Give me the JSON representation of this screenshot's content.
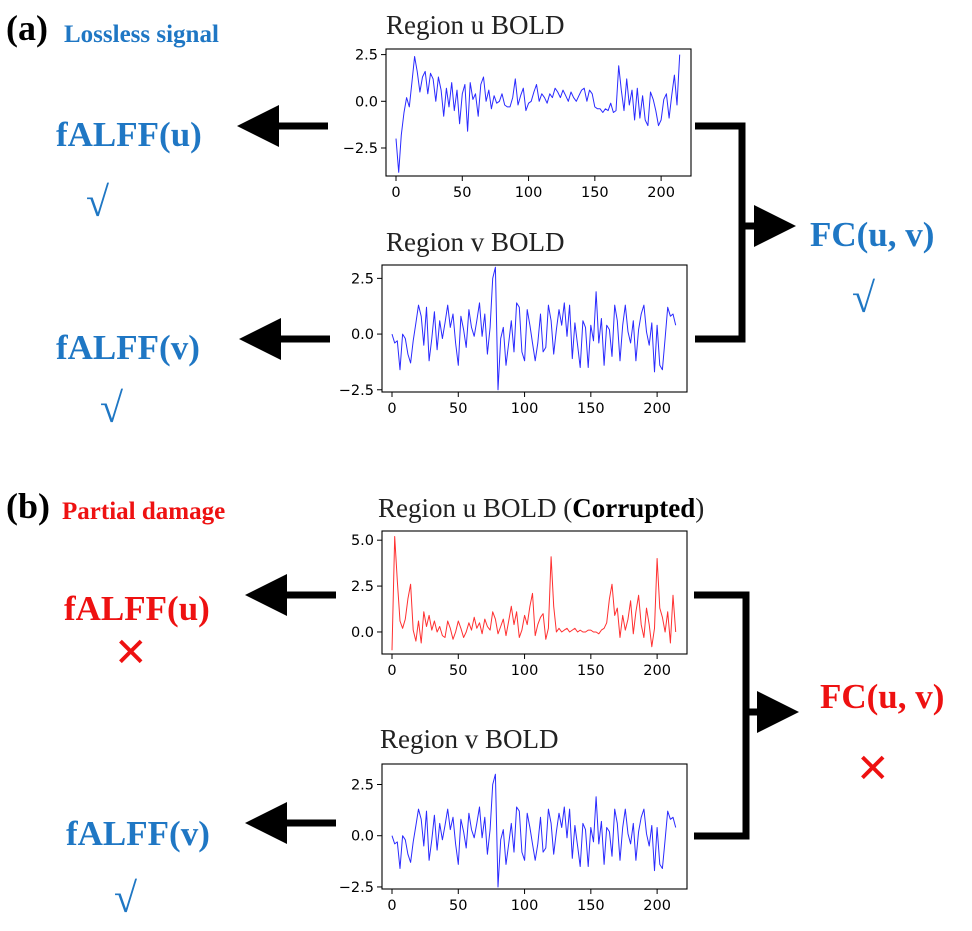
{
  "colors": {
    "good": "#1f77c4",
    "bad": "#ee1111",
    "signal_clean": "#2a2aff",
    "signal_corrupted": "#ff3030"
  },
  "panel_a": {
    "letter": "(a)",
    "subtitle": "Lossless signal",
    "plot_u_title": "Region u BOLD",
    "plot_v_title": "Region v BOLD",
    "falff_u": "fALFF(u)",
    "falff_v": "fALFF(v)",
    "fc": "FC(u, v)",
    "mark_u": "√",
    "mark_v": "√",
    "mark_fc": "√"
  },
  "panel_b": {
    "letter": "(b)",
    "subtitle": "Partial damage",
    "plot_u_title_prefix": "Region u BOLD (",
    "plot_u_title_bold": "Corrupted",
    "plot_u_title_suffix": ")",
    "plot_v_title": "Region v BOLD",
    "falff_u": "fALFF(u)",
    "falff_v": "fALFF(v)",
    "fc": "FC(u, v)",
    "mark_u": "✕",
    "mark_v": "√",
    "mark_fc": "✕"
  },
  "chart_data": [
    {
      "type": "line",
      "name": "a-u",
      "title": "Region u BOLD",
      "xlim": [
        0,
        215
      ],
      "ylim": [
        -4.0,
        2.8
      ],
      "xticks": [
        0,
        50,
        100,
        150,
        200
      ],
      "yticks": [
        2.5,
        0.0,
        -2.5
      ],
      "ytick_labels": [
        "2.5",
        "0.0",
        "−2.5"
      ],
      "color": "#2a2aff",
      "x": [
        0,
        2,
        4,
        6,
        8,
        10,
        12,
        14,
        16,
        18,
        20,
        22,
        24,
        26,
        28,
        30,
        32,
        34,
        36,
        38,
        40,
        42,
        44,
        46,
        48,
        50,
        52,
        54,
        56,
        58,
        60,
        62,
        64,
        66,
        68,
        70,
        72,
        74,
        76,
        78,
        80,
        82,
        84,
        86,
        88,
        90,
        92,
        94,
        96,
        98,
        100,
        102,
        104,
        106,
        108,
        110,
        112,
        114,
        116,
        118,
        120,
        122,
        124,
        126,
        128,
        130,
        132,
        134,
        136,
        138,
        140,
        142,
        144,
        146,
        148,
        150,
        152,
        154,
        156,
        158,
        160,
        162,
        164,
        166,
        168,
        170,
        172,
        174,
        176,
        178,
        180,
        182,
        184,
        186,
        188,
        190,
        192,
        194,
        196,
        198,
        200,
        202,
        204,
        206,
        208,
        210,
        212,
        214
      ],
      "y": [
        -2.0,
        -3.8,
        -1.8,
        -0.6,
        0.2,
        -0.3,
        1.0,
        2.4,
        1.6,
        0.5,
        1.3,
        1.6,
        0.4,
        1.5,
        1.2,
        0.0,
        1.3,
        0.6,
        -0.8,
        0.7,
        -0.3,
        1.0,
        -0.5,
        0.6,
        -1.2,
        0.4,
        0.9,
        -1.6,
        1.0,
        0.1,
        0.4,
        -0.8,
        0.9,
        1.3,
        0.0,
        0.6,
        -0.4,
        0.3,
        -0.1,
        0.0,
        0.4,
        -0.2,
        -0.3,
        -0.3,
        0.2,
        1.2,
        -0.2,
        0.3,
        0.7,
        -0.5,
        -0.1,
        0.0,
        0.5,
        0.9,
        0.0,
        0.4,
        0.2,
        -0.1,
        0.4,
        0.2,
        0.7,
        0.5,
        0.2,
        0.6,
        0.3,
        0.0,
        0.5,
        0.2,
        0.0,
        0.3,
        0.6,
        0.7,
        0.0,
        0.6,
        0.4,
        -0.3,
        -0.4,
        -0.4,
        -0.6,
        -0.4,
        -0.5,
        -0.1,
        -0.6,
        -0.5,
        1.9,
        0.6,
        -0.5,
        1.2,
        -0.2,
        0.6,
        -1.0,
        0.7,
        -0.9,
        0.3,
        -1.0,
        -1.3,
        0.5,
        0.1,
        -0.5,
        -1.3,
        -1.0,
        0.1,
        0.4,
        -0.9,
        0.3,
        1.4,
        -0.2,
        2.5
      ]
    },
    {
      "type": "line",
      "name": "a-v",
      "title": "Region v BOLD",
      "xlim": [
        0,
        215
      ],
      "ylim": [
        -2.6,
        3.1
      ],
      "xticks": [
        0,
        50,
        100,
        150,
        200
      ],
      "yticks": [
        2.5,
        0.0,
        -2.5
      ],
      "ytick_labels": [
        "2.5",
        "0.0",
        "−2.5"
      ],
      "color": "#2a2aff",
      "x": [
        0,
        2,
        4,
        6,
        8,
        10,
        12,
        14,
        16,
        18,
        20,
        22,
        24,
        26,
        28,
        30,
        32,
        34,
        36,
        38,
        40,
        42,
        44,
        46,
        48,
        50,
        52,
        54,
        56,
        58,
        60,
        62,
        64,
        66,
        68,
        70,
        72,
        74,
        76,
        78,
        80,
        82,
        84,
        86,
        88,
        90,
        92,
        94,
        96,
        98,
        100,
        102,
        104,
        106,
        108,
        110,
        112,
        114,
        116,
        118,
        120,
        122,
        124,
        126,
        128,
        130,
        132,
        134,
        136,
        138,
        140,
        142,
        144,
        146,
        148,
        150,
        152,
        154,
        156,
        158,
        160,
        162,
        164,
        166,
        168,
        170,
        172,
        174,
        176,
        178,
        180,
        182,
        184,
        186,
        188,
        190,
        192,
        194,
        196,
        198,
        200,
        202,
        204,
        206,
        208,
        210,
        212,
        214
      ],
      "y": [
        0.0,
        -0.4,
        -0.3,
        -1.6,
        0.0,
        -0.2,
        -0.9,
        -1.3,
        -0.3,
        0.5,
        1.3,
        0.8,
        -0.5,
        1.2,
        -1.2,
        -0.2,
        1.0,
        -0.7,
        0.6,
        -0.2,
        0.5,
        1.3,
        0.3,
        0.9,
        -0.4,
        -1.4,
        0.8,
        0.2,
        -0.6,
        1.1,
        0.3,
        -0.1,
        0.6,
        1.4,
        -0.1,
        0.9,
        -0.9,
        0.3,
        2.5,
        3.0,
        -2.5,
        -0.2,
        0.3,
        -1.4,
        -0.4,
        0.6,
        -0.8,
        1.4,
        1.2,
        -0.8,
        -1.2,
        1.1,
        0.4,
        -0.4,
        -1.2,
        -0.4,
        0.9,
        -0.8,
        -0.6,
        1.3,
        0.6,
        -0.9,
        0.2,
        1.1,
        0.4,
        1.4,
        -0.1,
        1.3,
        -1.1,
        0.5,
        -0.5,
        -1.5,
        0.6,
        0.3,
        -1.5,
        0.4,
        -0.3,
        1.9,
        -0.4,
        0.7,
        -1.4,
        0.4,
        0.2,
        -1.0,
        1.3,
        0.6,
        -1.2,
        0.4,
        1.3,
        0.1,
        -0.4,
        0.6,
        -1.2,
        0.2,
        0.9,
        1.3,
        0.1,
        -0.5,
        0.5,
        -1.7,
        0.4,
        -1.4,
        -1.6,
        -0.2,
        1.2,
        0.8,
        0.9,
        0.4
      ]
    },
    {
      "type": "line",
      "name": "b-u",
      "title": "Region u BOLD (Corrupted)",
      "xlim": [
        0,
        215
      ],
      "ylim": [
        -1.2,
        5.5
      ],
      "xticks": [
        0,
        50,
        100,
        150,
        200
      ],
      "yticks": [
        5.0,
        2.5,
        0.0
      ],
      "ytick_labels": [
        "5.0",
        "2.5",
        "0.0"
      ],
      "color": "#ff3030",
      "x": [
        0,
        2,
        4,
        6,
        8,
        10,
        12,
        14,
        16,
        18,
        20,
        22,
        24,
        26,
        28,
        30,
        32,
        34,
        36,
        38,
        40,
        42,
        44,
        46,
        48,
        50,
        52,
        54,
        56,
        58,
        60,
        62,
        64,
        66,
        68,
        70,
        72,
        74,
        76,
        78,
        80,
        82,
        84,
        86,
        88,
        90,
        92,
        94,
        96,
        98,
        100,
        102,
        104,
        106,
        108,
        110,
        112,
        114,
        116,
        118,
        120,
        122,
        124,
        126,
        128,
        130,
        132,
        134,
        136,
        138,
        140,
        142,
        144,
        146,
        148,
        150,
        152,
        154,
        156,
        158,
        160,
        162,
        164,
        166,
        168,
        170,
        172,
        174,
        176,
        178,
        180,
        182,
        184,
        186,
        188,
        190,
        192,
        194,
        196,
        198,
        200,
        202,
        204,
        206,
        208,
        210,
        212,
        214
      ],
      "y": [
        -1.0,
        5.2,
        2.8,
        0.6,
        0.2,
        0.7,
        1.8,
        2.6,
        0.1,
        -0.5,
        0.6,
        -0.6,
        1.1,
        0.3,
        0.9,
        0.1,
        0.6,
        0.0,
        0.3,
        -0.2,
        -0.3,
        0.6,
        0.2,
        -0.4,
        0.0,
        0.6,
        0.2,
        -0.3,
        0.0,
        0.5,
        0.1,
        0.8,
        0.2,
        0.5,
        -0.1,
        0.7,
        0.3,
        0.1,
        1.1,
        0.7,
        -0.1,
        0.3,
        0.7,
        -0.2,
        0.6,
        1.4,
        0.4,
        1.1,
        -0.3,
        0.1,
        0.9,
        0.4,
        1.4,
        2.1,
        -0.2,
        0.4,
        0.8,
        1.0,
        -0.4,
        0.2,
        4.1,
        1.4,
        0.0,
        0.2,
        0.0,
        0.1,
        0.2,
        0.0,
        0.1,
        0.2,
        0.0,
        0.1,
        0.0,
        0.0,
        0.1,
        0.1,
        0.0,
        0.0,
        -0.1,
        0.1,
        0.2,
        0.5,
        1.8,
        2.6,
        0.9,
        1.3,
        -0.3,
        0.9,
        0.1,
        0.7,
        1.7,
        -0.1,
        1.1,
        2.0,
        0.4,
        -0.3,
        1.3,
        0.4,
        -0.8,
        0.2,
        4.0,
        1.3,
        0.8,
        0.0,
        1.1,
        -0.6,
        2.0,
        0.0
      ]
    },
    {
      "type": "line",
      "name": "b-v",
      "title": "Region v BOLD",
      "xlim": [
        0,
        215
      ],
      "ylim": [
        -2.6,
        3.5
      ],
      "xticks": [
        0,
        50,
        100,
        150,
        200
      ],
      "yticks": [
        2.5,
        0.0,
        -2.5
      ],
      "ytick_labels": [
        "2.5",
        "0.0",
        "−2.5"
      ],
      "color": "#2a2aff",
      "x": [
        0,
        2,
        4,
        6,
        8,
        10,
        12,
        14,
        16,
        18,
        20,
        22,
        24,
        26,
        28,
        30,
        32,
        34,
        36,
        38,
        40,
        42,
        44,
        46,
        48,
        50,
        52,
        54,
        56,
        58,
        60,
        62,
        64,
        66,
        68,
        70,
        72,
        74,
        76,
        78,
        80,
        82,
        84,
        86,
        88,
        90,
        92,
        94,
        96,
        98,
        100,
        102,
        104,
        106,
        108,
        110,
        112,
        114,
        116,
        118,
        120,
        122,
        124,
        126,
        128,
        130,
        132,
        134,
        136,
        138,
        140,
        142,
        144,
        146,
        148,
        150,
        152,
        154,
        156,
        158,
        160,
        162,
        164,
        166,
        168,
        170,
        172,
        174,
        176,
        178,
        180,
        182,
        184,
        186,
        188,
        190,
        192,
        194,
        196,
        198,
        200,
        202,
        204,
        206,
        208,
        210,
        212,
        214
      ],
      "y": [
        0.0,
        -0.4,
        -0.3,
        -1.6,
        0.0,
        -0.2,
        -0.9,
        -1.3,
        -0.3,
        0.5,
        1.3,
        0.8,
        -0.5,
        1.2,
        -1.2,
        -0.2,
        1.0,
        -0.7,
        0.6,
        -0.2,
        0.5,
        1.3,
        0.3,
        0.9,
        -0.4,
        -1.4,
        0.8,
        0.2,
        -0.6,
        1.1,
        0.3,
        -0.1,
        0.6,
        1.4,
        -0.1,
        0.9,
        -0.9,
        0.3,
        2.5,
        3.0,
        -2.5,
        -0.2,
        0.3,
        -1.4,
        -0.4,
        0.6,
        -0.8,
        1.4,
        1.2,
        -0.8,
        -1.2,
        1.1,
        0.4,
        -0.4,
        -1.2,
        -0.4,
        0.9,
        -0.8,
        -0.6,
        1.3,
        0.6,
        -0.9,
        0.2,
        1.1,
        0.4,
        1.4,
        -0.1,
        1.3,
        -1.1,
        0.5,
        -0.5,
        -1.5,
        0.6,
        0.3,
        -1.5,
        0.4,
        -0.3,
        1.9,
        -0.4,
        0.7,
        -1.4,
        0.4,
        0.2,
        -1.0,
        1.3,
        0.6,
        -1.2,
        0.4,
        1.3,
        0.1,
        -0.4,
        0.6,
        -1.2,
        0.2,
        0.9,
        1.3,
        0.1,
        -0.5,
        0.5,
        -1.7,
        0.4,
        -1.4,
        -1.6,
        -0.2,
        1.2,
        0.8,
        0.9,
        0.4
      ]
    }
  ]
}
